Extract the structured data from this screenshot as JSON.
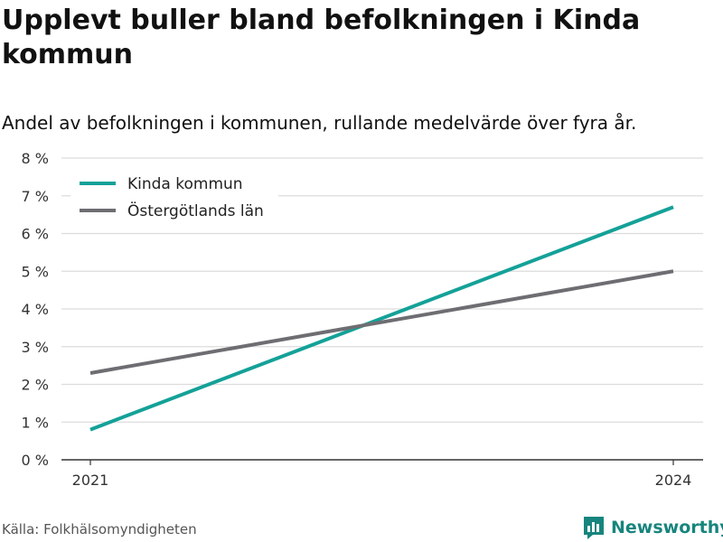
{
  "title": "Upplevt buller bland befolkningen i Kinda kommun",
  "subtitle": "Andel av befolkningen i kommunen, rullande medelvärde över fyra år.",
  "source": "Källa: Folkhälsomyndigheten",
  "brand": {
    "name": "Newsworthy",
    "icon": "newsworthy-logo-icon",
    "color": "#17857d"
  },
  "chart_data": {
    "type": "line",
    "x": [
      "2021",
      "2024"
    ],
    "ylim": [
      0,
      8
    ],
    "yticks": [
      "0 %",
      "1 %",
      "2 %",
      "3 %",
      "4 %",
      "5 %",
      "6 %",
      "7 %",
      "8 %"
    ],
    "grid": true,
    "legend_position": "top-left",
    "series": [
      {
        "name": "Kinda kommun",
        "values": [
          0.8,
          6.7
        ],
        "color": "#14a198"
      },
      {
        "name": "Östergötlands län",
        "values": [
          2.3,
          5.0
        ],
        "color": "#6e6d72"
      }
    ]
  }
}
